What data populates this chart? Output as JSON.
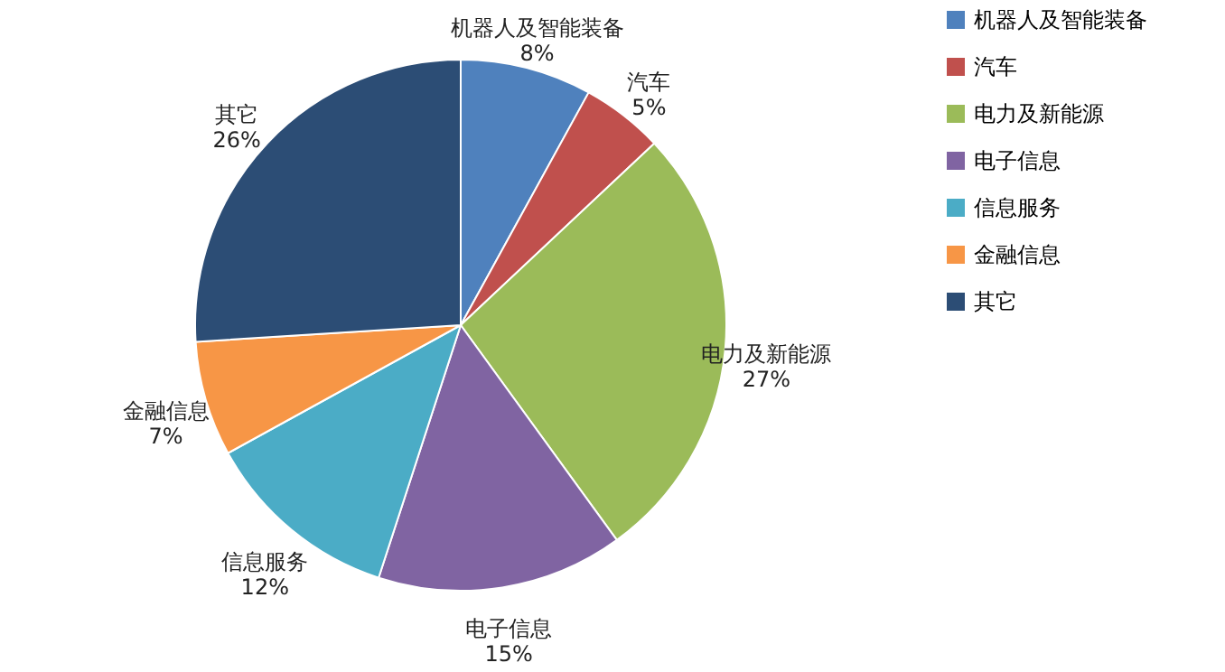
{
  "chart_data": {
    "type": "pie",
    "categories": [
      "机器人及智能装备",
      "汽车",
      "电力及新能源",
      "电子信息",
      "信息服务",
      "金融信息",
      "其它"
    ],
    "values": [
      8,
      5,
      27,
      15,
      12,
      7,
      26
    ],
    "colors": [
      "#4f81bd",
      "#c0504d",
      "#9bbb59",
      "#8064a2",
      "#4bacc6",
      "#f79646",
      "#2c4d75"
    ],
    "value_labels": [
      "8%",
      "5%",
      "27%",
      "15%",
      "12%",
      "7%",
      "26%"
    ],
    "legend": "right"
  }
}
